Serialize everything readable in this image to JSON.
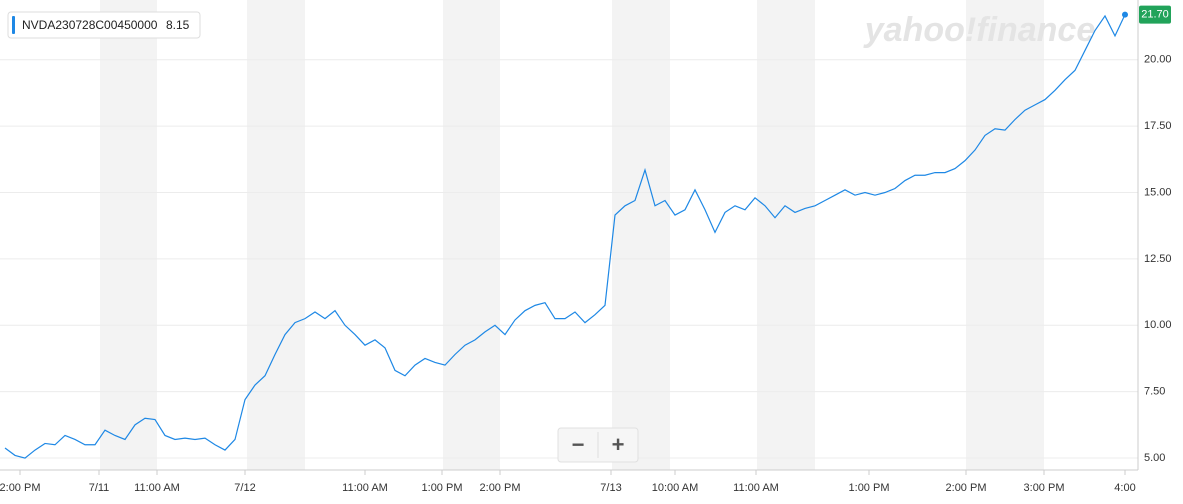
{
  "chart_data": {
    "type": "line",
    "watermark": "yahoo!finance",
    "legend": {
      "name": "NVDA230728C00450000",
      "value": 8.15
    },
    "controls": [
      "−",
      "+"
    ],
    "series": [
      {
        "name": "NVDA230728C00450000",
        "color": "#1e88e5",
        "values": [
          5.38,
          5.1,
          5.0,
          5.3,
          5.55,
          5.5,
          5.85,
          5.7,
          5.5,
          5.5,
          6.05,
          5.85,
          5.7,
          6.25,
          6.5,
          6.45,
          5.85,
          5.7,
          5.75,
          5.7,
          5.75,
          5.5,
          5.3,
          5.7,
          7.2,
          7.75,
          8.1,
          8.9,
          9.65,
          10.1,
          10.25,
          10.5,
          10.25,
          10.55,
          10.0,
          9.65,
          9.25,
          9.45,
          9.15,
          8.3,
          8.1,
          8.5,
          8.75,
          8.6,
          8.5,
          8.9,
          9.25,
          9.45,
          9.75,
          10.0,
          9.65,
          10.2,
          10.55,
          10.75,
          10.85,
          10.25,
          10.25,
          10.5,
          10.1,
          10.4,
          10.75,
          14.15,
          14.5,
          14.7,
          15.85,
          14.5,
          14.7,
          14.15,
          14.35,
          15.1,
          14.35,
          13.5,
          14.25,
          14.5,
          14.35,
          14.8,
          14.5,
          14.05,
          14.5,
          14.25,
          14.4,
          14.5,
          14.7,
          14.9,
          15.1,
          14.9,
          15.0,
          14.9,
          15.0,
          15.15,
          15.45,
          15.65,
          15.65,
          15.75,
          15.75,
          15.9,
          16.2,
          16.6,
          17.15,
          17.4,
          17.35,
          17.75,
          18.1,
          18.3,
          18.5,
          18.85,
          19.25,
          19.6,
          20.35,
          21.1,
          21.65,
          20.9,
          21.7
        ]
      }
    ],
    "last_price": {
      "value": 21.7,
      "label": "21.70"
    },
    "xlim": [
      -0.5,
      113.3
    ],
    "xticks": [
      {
        "value": 1.5,
        "label": "2:00 PM"
      },
      {
        "value": 9.4,
        "label": "7/11"
      },
      {
        "value": 15.2,
        "label": "11:00 AM"
      },
      {
        "value": 24,
        "label": "7/12"
      },
      {
        "value": 36,
        "label": "11:00 AM"
      },
      {
        "value": 43.7,
        "label": "1:00 PM"
      },
      {
        "value": 49.5,
        "label": "2:00 PM"
      },
      {
        "value": 60.6,
        "label": "7/13"
      },
      {
        "value": 67,
        "label": "10:00 AM"
      },
      {
        "value": 75.1,
        "label": "11:00 AM"
      },
      {
        "value": 86.4,
        "label": "1:00 PM"
      },
      {
        "value": 96.1,
        "label": "2:00 PM"
      },
      {
        "value": 103.9,
        "label": "3:00 PM"
      },
      {
        "value": 112,
        "label": "4:00"
      }
    ],
    "ylim": [
      4.55,
      22.25
    ],
    "yticks": [
      {
        "value": 5,
        "label": "5.00"
      },
      {
        "value": 7.5,
        "label": "7.50"
      },
      {
        "value": 10,
        "label": "10.00"
      },
      {
        "value": 12.5,
        "label": "12.50"
      },
      {
        "value": 15,
        "label": "15.00"
      },
      {
        "value": 17.5,
        "label": "17.50"
      },
      {
        "value": 20,
        "label": "20.00"
      }
    ],
    "grid": true
  }
}
